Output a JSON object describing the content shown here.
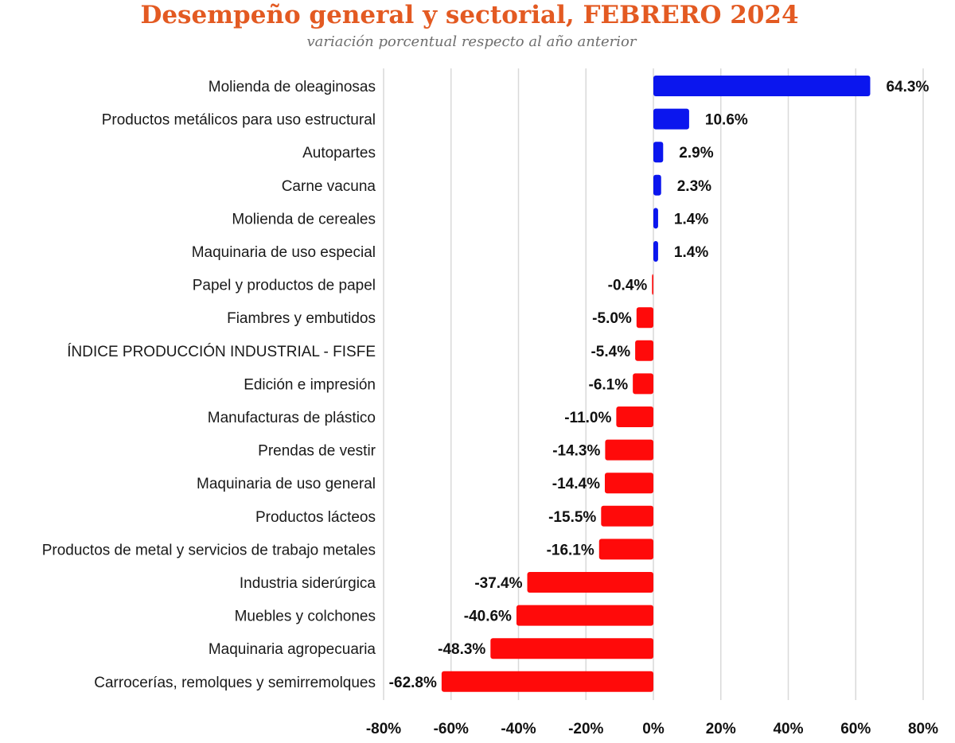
{
  "chart_data": {
    "type": "bar",
    "orientation": "horizontal",
    "title": "Desempeño general y sectorial, FEBRERO 2024",
    "subtitle": "variación porcentual respecto al año anterior",
    "xlabel": "",
    "ylabel": "",
    "xlim": [
      -80,
      80
    ],
    "x_ticks": [
      -80,
      -60,
      -40,
      -20,
      0,
      20,
      40,
      60,
      80
    ],
    "x_tick_labels": [
      "-80%",
      "-60%",
      "-40%",
      "-20%",
      "0%",
      "20%",
      "40%",
      "60%",
      "80%"
    ],
    "grid": true,
    "positive_color": "#0b16ee",
    "negative_color": "#ff0a0a",
    "gridline_color": "#d9d9d9",
    "categories": [
      "Molienda de oleaginosas",
      "Productos metálicos para uso estructural",
      "Autopartes",
      "Carne vacuna",
      "Molienda de cereales",
      "Maquinaria de uso especial",
      "Papel y productos de papel",
      "Fiambres y embutidos",
      "ÍNDICE PRODUCCIÓN INDUSTRIAL - FISFE",
      "Edición e impresión",
      "Manufacturas de plástico",
      "Prendas de vestir",
      "Maquinaria de uso general",
      "Productos lácteos",
      "Productos de metal y servicios de trabajo metales",
      "Industria siderúrgica",
      "Muebles y colchones",
      "Maquinaria agropecuaria",
      "Carrocerías, remolques y semirremolques"
    ],
    "values": [
      64.3,
      10.6,
      2.9,
      2.3,
      1.4,
      1.4,
      -0.4,
      -5.0,
      -5.4,
      -6.1,
      -11.0,
      -14.3,
      -14.4,
      -15.5,
      -16.1,
      -37.4,
      -40.6,
      -48.3,
      -62.8
    ],
    "value_labels": [
      "64.3%",
      "10.6%",
      "2.9%",
      "2.3%",
      "1.4%",
      "1.4%",
      "-0.4%",
      "-5.0%",
      "-5.4%",
      "-6.1%",
      "-11.0%",
      "-14.3%",
      "-14.4%",
      "-15.5%",
      "-16.1%",
      "-37.4%",
      "-40.6%",
      "-48.3%",
      "-62.8%"
    ]
  }
}
